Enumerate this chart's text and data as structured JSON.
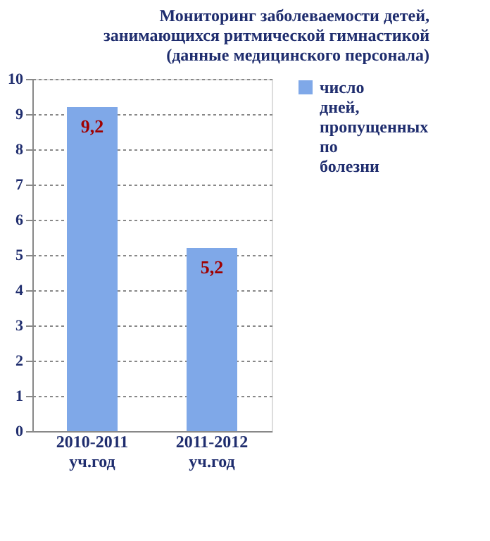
{
  "chart_data": {
    "type": "bar",
    "title": "Мониторинг заболеваемости детей, занимающихся ритмической гимнастикой (данные медицинского персонала)",
    "categories": [
      "2010-2011 уч.год",
      "2011-2012 уч.год"
    ],
    "series": [
      {
        "name": "число дней, пропущенных по болезни",
        "color": "#7fa8e8",
        "values": [
          9.2,
          5.2
        ],
        "value_labels": [
          "9,2",
          "5,2"
        ]
      }
    ],
    "ylim": [
      0,
      10
    ],
    "yticks": [
      0,
      1,
      2,
      3,
      4,
      5,
      6,
      7,
      8,
      9,
      10
    ],
    "grid": "y",
    "legend": "right"
  }
}
